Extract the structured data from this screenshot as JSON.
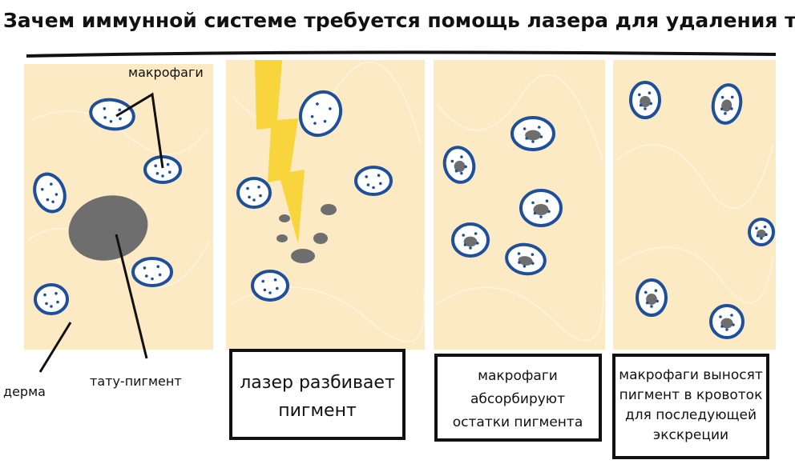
{
  "title": "Зачем иммунной системе требуется помощь лазера для удаления тату",
  "labels": {
    "macrophages": "макрофаги",
    "dermis": "дерма",
    "tattoo_pigment": "тату-пигмент"
  },
  "captions": {
    "panel2": [
      "лазер разбивает",
      "пигмент"
    ],
    "panel3": [
      "макрофаги",
      "абсорбируют",
      "остатки пигмента"
    ],
    "panel4": [
      "макрофаги выносят",
      "пигмент в кровоток",
      "для последующей",
      "экскреции"
    ]
  },
  "colors": {
    "dermis": "#fbeac4",
    "macrophage_outline": "#1d4f9c",
    "pigment": "#6e6e6e",
    "laser": "#f8d53c"
  }
}
